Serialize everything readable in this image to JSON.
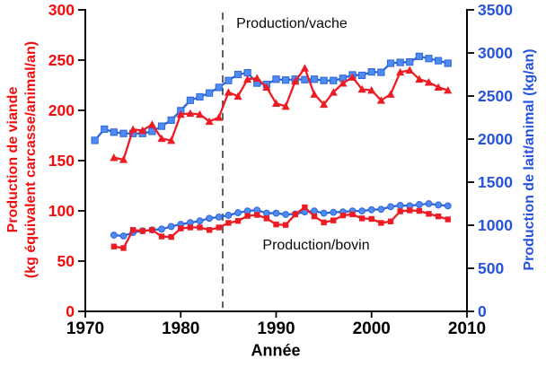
{
  "colors": {
    "red_text": "#f40b0b",
    "blue_text": "#2653de",
    "red_series": "#ed1c24",
    "blue_line": "#2e64d9",
    "blue_fill": "#4e8cf3",
    "axis": "#000000",
    "dashed_line": "#3a3a3a"
  },
  "labels": {
    "ylabel_left_line1": "Production de viande",
    "ylabel_left_line2": "(kg équivalent carcasse/animal/an)",
    "ylabel_right": "Production de lait/animal (kg/an)",
    "xlabel": "Année",
    "annotation_top": "Production/vache",
    "annotation_bottom": "Production/bovin"
  },
  "chart_data": {
    "type": "line",
    "title": "",
    "xlabel": "Année",
    "ylabel_left": "Production de viande (kg équivalent carcasse/animal/an)",
    "ylabel_right": "Production de lait/animal (kg/an)",
    "x_range": [
      1970,
      2010
    ],
    "x_ticks": [
      1970,
      1980,
      1990,
      2000,
      2010
    ],
    "y_left": {
      "min": 0,
      "max": 300,
      "ticks": [
        0,
        50,
        100,
        150,
        200,
        250,
        300
      ]
    },
    "y_right": {
      "min": 0,
      "max": 3500,
      "ticks": [
        0,
        500,
        1000,
        1500,
        2000,
        2500,
        3000,
        3500
      ]
    },
    "grid": false,
    "legend": "none (two in-plot text annotations)",
    "vline": {
      "year": 1984.4,
      "style": "dashed"
    },
    "annotations": [
      {
        "text": "Production/vache",
        "near_year": 1991,
        "position": "top"
      },
      {
        "text": "Production/bovin",
        "near_year": 1993,
        "position": "middle"
      }
    ],
    "series": [
      {
        "name": "Production/vache — lait (kg/an)",
        "group": "Production/vache",
        "axis": "right",
        "marker": "square",
        "color": "blue",
        "start_year": 1971,
        "values": [
          1985,
          2115,
          2080,
          2065,
          2065,
          2065,
          2090,
          2150,
          2220,
          2330,
          2450,
          2490,
          2535,
          2600,
          2680,
          2750,
          2770,
          2650,
          2635,
          2695,
          2685,
          2695,
          2690,
          2695,
          2680,
          2680,
          2705,
          2745,
          2740,
          2780,
          2775,
          2880,
          2890,
          2895,
          2960,
          2935,
          2910,
          2880
        ]
      },
      {
        "name": "Production/vache — viande (kg équivalent carcasse/an)",
        "group": "Production/vache",
        "axis": "left",
        "marker": "triangle",
        "color": "red",
        "start_year": 1973,
        "values": [
          153,
          151,
          181,
          180,
          186,
          172,
          170,
          196,
          197,
          196,
          189,
          193,
          218,
          214,
          231,
          232,
          223,
          207,
          204,
          229,
          242,
          216,
          206,
          218,
          227,
          233,
          221,
          220,
          210,
          216,
          238,
          240,
          231,
          228,
          223,
          220
        ]
      },
      {
        "name": "Production/bovin — lait (kg/an)",
        "group": "Production/bovin",
        "axis": "right",
        "marker": "circle",
        "color": "blue",
        "start_year": 1973,
        "values": [
          885,
          875,
          915,
          935,
          945,
          955,
          985,
          1010,
          1030,
          1050,
          1080,
          1095,
          1115,
          1145,
          1165,
          1175,
          1140,
          1140,
          1125,
          1130,
          1155,
          1165,
          1140,
          1150,
          1155,
          1165,
          1165,
          1180,
          1185,
          1215,
          1230,
          1225,
          1240,
          1250,
          1235,
          1225
        ]
      },
      {
        "name": "Production/bovin — viande (kg équivalent carcasse/an)",
        "group": "Production/bovin",
        "axis": "left",
        "marker": "square_small",
        "color": "red",
        "start_year": 1973,
        "values": [
          64.5,
          63,
          81,
          80,
          81,
          74.5,
          74,
          82.5,
          83.5,
          83.5,
          81,
          83.5,
          88,
          90,
          95,
          96,
          92.5,
          86.5,
          86,
          96.5,
          103.5,
          94.5,
          88.5,
          90.5,
          95.5,
          96.5,
          92.5,
          92,
          88,
          89.5,
          99.5,
          100.5,
          100,
          97,
          94.5,
          91.5
        ]
      }
    ]
  }
}
